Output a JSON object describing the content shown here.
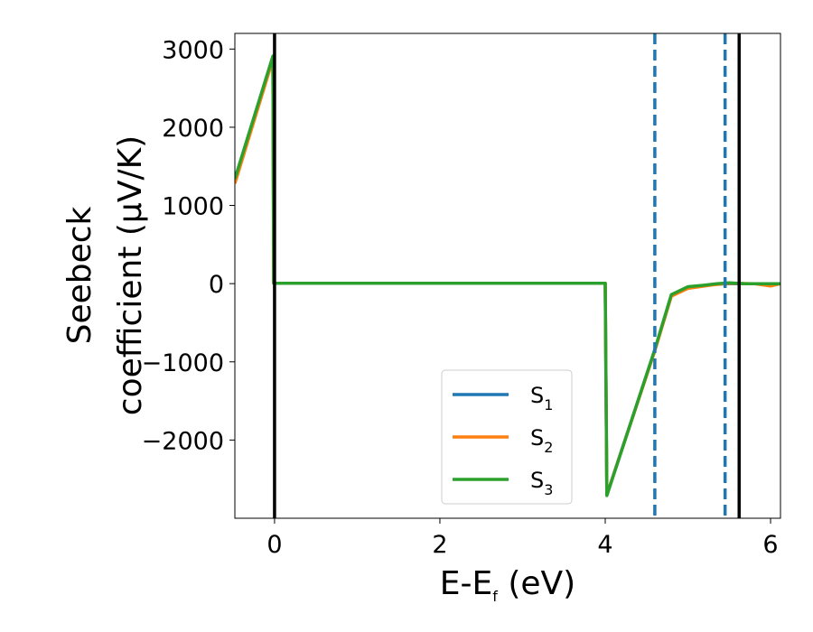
{
  "chart_data": {
    "type": "line",
    "xlabel": "E-E_f (eV)",
    "ylabel": "Seebeck coefficient (μV/K)",
    "ylabel_lines": [
      "Seebeck",
      "coefficient  (μV/K)"
    ],
    "xlim": [
      -0.48,
      6.12
    ],
    "ylim": [
      -3000,
      3200
    ],
    "xticks": [
      0,
      2,
      4,
      6
    ],
    "yticks": [
      -2000,
      -1000,
      0,
      1000,
      2000,
      3000
    ],
    "ytick_labels": [
      "−2000",
      "−1000",
      "0",
      "1000",
      "2000",
      "3000"
    ],
    "grid": false,
    "legend_position": "lower center",
    "vlines": [
      {
        "x": 0,
        "style": "solid",
        "color": "#000000"
      },
      {
        "x": 5.62,
        "style": "solid",
        "color": "#000000"
      },
      {
        "x": 4.6,
        "style": "dashed",
        "color": "#1f77b4"
      },
      {
        "x": 5.45,
        "style": "dashed",
        "color": "#1f77b4"
      }
    ],
    "series": [
      {
        "name": "S_1",
        "color": "#1f77b4",
        "points": [
          [
            -0.48,
            1320
          ],
          [
            -0.02,
            2900
          ],
          [
            -0.01,
            5
          ],
          [
            4.0,
            5
          ],
          [
            4.02,
            -2700
          ],
          [
            4.6,
            -850
          ],
          [
            4.8,
            -150
          ],
          [
            5.0,
            -50
          ],
          [
            5.3,
            -10
          ],
          [
            5.5,
            0
          ],
          [
            6.12,
            0
          ]
        ]
      },
      {
        "name": "S_2",
        "color": "#ff7f0e",
        "points": [
          [
            -0.48,
            1280
          ],
          [
            -0.02,
            2870
          ],
          [
            -0.01,
            5
          ],
          [
            4.0,
            5
          ],
          [
            4.02,
            -2700
          ],
          [
            4.6,
            -860
          ],
          [
            4.8,
            -160
          ],
          [
            5.0,
            -60
          ],
          [
            5.3,
            -15
          ],
          [
            5.5,
            5
          ],
          [
            5.8,
            0
          ],
          [
            6.0,
            -30
          ],
          [
            6.12,
            0
          ]
        ]
      },
      {
        "name": "S_3",
        "color": "#2ca02c",
        "points": [
          [
            -0.48,
            1340
          ],
          [
            -0.02,
            2910
          ],
          [
            -0.01,
            5
          ],
          [
            4.0,
            5
          ],
          [
            4.02,
            -2710
          ],
          [
            4.6,
            -840
          ],
          [
            4.8,
            -140
          ],
          [
            5.0,
            -40
          ],
          [
            5.2,
            -20
          ],
          [
            5.35,
            0
          ],
          [
            5.5,
            10
          ],
          [
            5.7,
            0
          ],
          [
            6.12,
            0
          ]
        ]
      }
    ]
  }
}
